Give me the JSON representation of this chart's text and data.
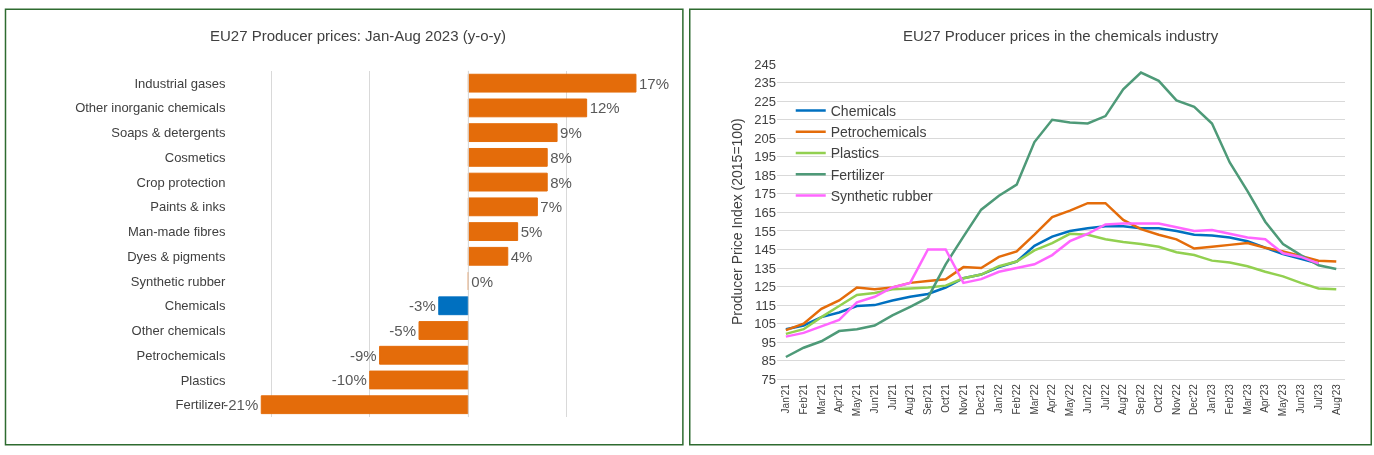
{
  "chart_data": [
    {
      "type": "bar",
      "title": "EU27 Producer prices: Jan-Aug 2023 (y-o-y)",
      "orientation": "horizontal",
      "categories": [
        "Industrial gases",
        "Other inorganic chemicals",
        "Soaps & detergents",
        "Cosmetics",
        "Crop protection",
        "Paints & inks",
        "Man-made fibres",
        "Dyes & pigments",
        "Synthetic rubber",
        "Chemicals",
        "Other chemicals",
        "Petrochemicals",
        "Plastics",
        "Fertilizer"
      ],
      "values": [
        17,
        12,
        9,
        8,
        8,
        7,
        5,
        4,
        0,
        -3,
        -5,
        -9,
        -10,
        -21
      ],
      "value_labels": [
        "17%",
        "12%",
        "9%",
        "8%",
        "8%",
        "7%",
        "5%",
        "4%",
        "0%",
        "-3%",
        "-5%",
        "-9%",
        "-10%",
        "-21%"
      ],
      "colors": [
        "#e46c0a",
        "#e46c0a",
        "#e46c0a",
        "#e46c0a",
        "#e46c0a",
        "#e46c0a",
        "#e46c0a",
        "#e46c0a",
        "#e46c0a",
        "#0070c0",
        "#e46c0a",
        "#e46c0a",
        "#e46c0a",
        "#e46c0a"
      ],
      "grid": "x",
      "tick_labels": "y"
    },
    {
      "type": "line",
      "title": "EU27 Producer prices in the chemicals industry",
      "ylabel": "Producer Price Index (2015=100)",
      "categories": [
        "Jan'21",
        "Feb'21",
        "Mar'21",
        "Apr'21",
        "May'21",
        "Jun'21",
        "Jul'21",
        "Aug'21",
        "Sep'21",
        "Oct'21",
        "Nov'21",
        "Dec'21",
        "Jan'22",
        "Feb'22",
        "Mar'22",
        "Apr'22",
        "May'22",
        "Jun'22",
        "Jul'22",
        "Aug'22",
        "Sep'22",
        "Oct'22",
        "Nov'22",
        "Dec'22",
        "Jan'23",
        "Feb'23",
        "Mar'23",
        "Apr'23",
        "May'23",
        "Jun'23",
        "Jul'23",
        "Aug'23"
      ],
      "series": [
        {
          "name": "Chemicals",
          "color": "#0070c0",
          "values": [
            102,
            104,
            108.5,
            111,
            114.5,
            115,
            117.5,
            119.5,
            121,
            124.5,
            129.5,
            131.5,
            135.5,
            138.5,
            147,
            152,
            155,
            156.5,
            157.5,
            157.5,
            156.5,
            156.5,
            155,
            153,
            152.5,
            151.5,
            149.5,
            146,
            142.5,
            140,
            137.5,
            null
          ]
        },
        {
          "name": "Petrochemicals",
          "color": "#e46c0a",
          "values": [
            101.5,
            105,
            113,
            117.5,
            124.5,
            123.5,
            124.5,
            127,
            128,
            129,
            135.5,
            135,
            141,
            144,
            153,
            162.5,
            166,
            170,
            170,
            161,
            156,
            153,
            150.5,
            145.5,
            146.5,
            147.5,
            148.5,
            146,
            144,
            141.5,
            139,
            138.5
          ]
        },
        {
          "name": "Plastics",
          "color": "#92d050",
          "values": [
            99.5,
            102,
            108.5,
            114.5,
            120.5,
            121.5,
            123.5,
            124,
            124.5,
            125.5,
            129.5,
            131.5,
            136,
            138.5,
            144.5,
            148.5,
            153.5,
            153,
            150.5,
            149,
            148,
            146.5,
            143.5,
            142,
            139,
            138,
            136,
            133,
            130.5,
            127,
            124,
            123.5
          ]
        },
        {
          "name": "Fertilizer",
          "color": "#4e9a78",
          "values": [
            87,
            92,
            95.5,
            101,
            102,
            104,
            109.5,
            114,
            119,
            137,
            152,
            166.5,
            174,
            180,
            203,
            215,
            213.5,
            213,
            217,
            231.5,
            240.5,
            236,
            225.5,
            222,
            213,
            192,
            176.5,
            160,
            148,
            142,
            136.5,
            134.5
          ]
        },
        {
          "name": "Synthetic rubber",
          "color": "#ff66ff",
          "values": [
            98,
            100,
            103.5,
            107,
            116.5,
            119.5,
            124.5,
            127,
            145,
            145,
            127,
            129,
            133,
            135,
            137,
            142,
            149.5,
            153.5,
            158.5,
            159,
            159,
            159,
            157,
            155,
            155.5,
            153.5,
            151.5,
            150.5,
            143,
            141,
            137.5,
            null
          ]
        }
      ],
      "ylim": [
        75,
        245
      ],
      "yticks": [
        75,
        85,
        95,
        105,
        115,
        125,
        135,
        145,
        155,
        165,
        175,
        185,
        195,
        205,
        215,
        225,
        235,
        245
      ],
      "grid": "y",
      "legend": "top left"
    }
  ]
}
